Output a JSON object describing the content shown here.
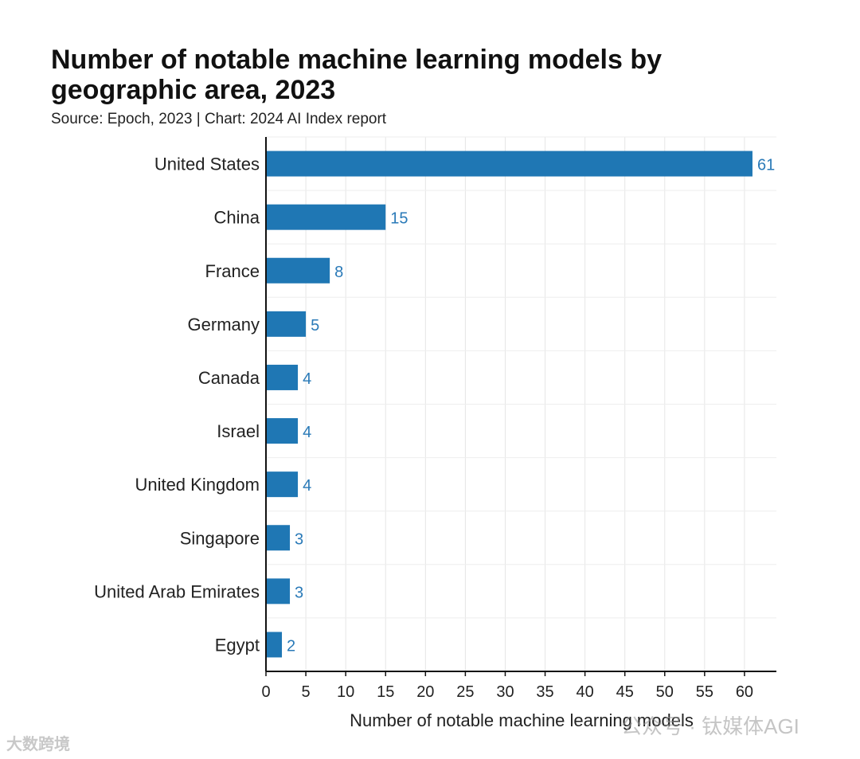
{
  "chart_data": {
    "type": "bar",
    "orientation": "horizontal",
    "title": "Number of notable machine learning models by geographic area, 2023",
    "subtitle": "Source: Epoch, 2023 | Chart: 2024 AI Index report",
    "categories": [
      "United States",
      "China",
      "France",
      "Germany",
      "Canada",
      "Israel",
      "United Kingdom",
      "Singapore",
      "United Arab Emirates",
      "Egypt"
    ],
    "values": [
      61,
      15,
      8,
      5,
      4,
      4,
      4,
      3,
      3,
      2
    ],
    "xlabel": "Number of notable machine learning models",
    "ylabel": "",
    "xlim": [
      0,
      64
    ],
    "xticks": [
      0,
      5,
      10,
      15,
      20,
      25,
      30,
      35,
      40,
      45,
      50,
      55,
      60
    ],
    "grid": true,
    "bar_color": "#1f77b4",
    "value_label_color": "#2a7ab8",
    "legend": "none"
  },
  "watermarks": {
    "left": "大数跨境",
    "right": "公众号 · 钛媒体AGI"
  }
}
